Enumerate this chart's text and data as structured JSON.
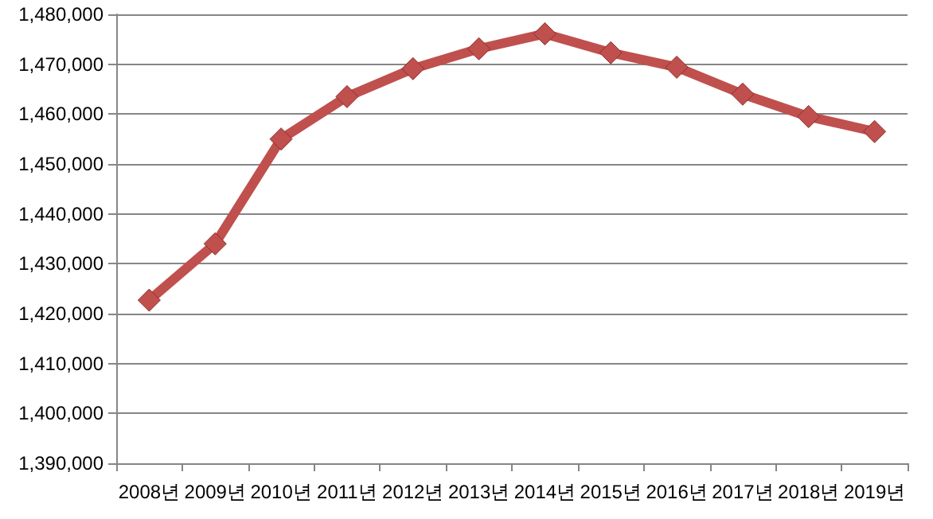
{
  "chart_data": {
    "type": "line",
    "categories": [
      "2008년",
      "2009년",
      "2010년",
      "2011년",
      "2012년",
      "2013년",
      "2014년",
      "2015년",
      "2016년",
      "2017년",
      "2018년",
      "2019년"
    ],
    "series": [
      {
        "color": "#c0504d",
        "values": [
          1422700,
          1434000,
          1455000,
          1463500,
          1469100,
          1473100,
          1476100,
          1472300,
          1469400,
          1464000,
          1459500,
          1456500
        ]
      }
    ],
    "ylim": [
      1390000,
      1480000
    ],
    "yticks": [
      {
        "value": 1390000,
        "label": "1,390,000"
      },
      {
        "value": 1400000,
        "label": "1,400,000"
      },
      {
        "value": 1410000,
        "label": "1,410,000"
      },
      {
        "value": 1420000,
        "label": "1,420,000"
      },
      {
        "value": 1430000,
        "label": "1,430,000"
      },
      {
        "value": 1440000,
        "label": "1,440,000"
      },
      {
        "value": 1450000,
        "label": "1,450,000"
      },
      {
        "value": 1460000,
        "label": "1,460,000"
      },
      {
        "value": 1470000,
        "label": "1,470,000"
      },
      {
        "value": 1480000,
        "label": "1,480,000"
      }
    ],
    "grid": "y",
    "marker": "diamond",
    "line_style": "solid"
  }
}
